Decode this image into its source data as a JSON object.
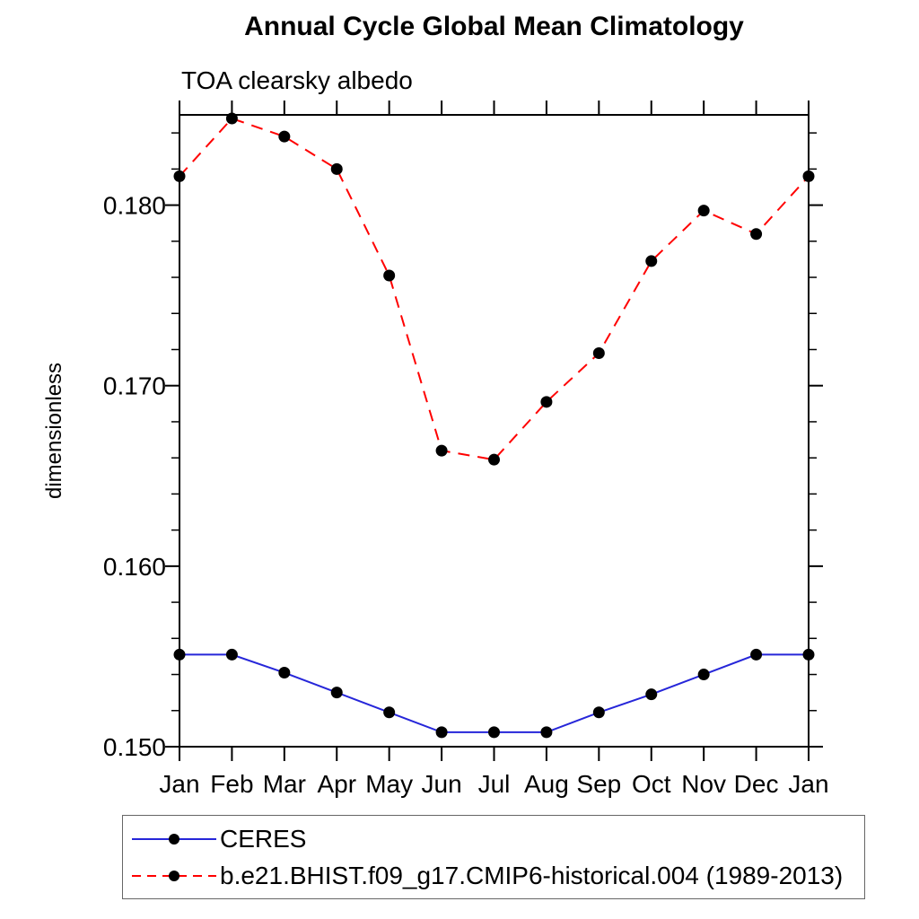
{
  "chart_data": {
    "type": "line",
    "title": "Annual Cycle Global Mean Climatology",
    "subtitle": "TOA clearsky albedo",
    "ylabel": "dimensionless",
    "xlabel": "",
    "categories": [
      "Jan",
      "Feb",
      "Mar",
      "Apr",
      "May",
      "Jun",
      "Jul",
      "Aug",
      "Sep",
      "Oct",
      "Nov",
      "Dec",
      "Jan"
    ],
    "ylim": [
      0.15,
      0.185
    ],
    "y_major_ticks": [
      0.15,
      0.16,
      0.17,
      0.18
    ],
    "y_minor_step": 0.002,
    "grid": "off",
    "legend_position": "bottom-left",
    "series": [
      {
        "name": "CERES",
        "color": "#2626d9",
        "style": "solid",
        "marker": "circle",
        "marker_color": "#000000",
        "values": [
          0.1551,
          0.1551,
          0.1541,
          0.153,
          0.1519,
          0.1508,
          0.1508,
          0.1508,
          0.1519,
          0.1529,
          0.154,
          0.1551,
          0.1551
        ]
      },
      {
        "name": "b.e21.BHIST.f09_g17.CMIP6-historical.004 (1989-2013)",
        "color": "#ff0000",
        "style": "dashed",
        "marker": "circle",
        "marker_color": "#000000",
        "values": [
          0.1816,
          0.1848,
          0.1838,
          0.182,
          0.1761,
          0.1664,
          0.1659,
          0.1691,
          0.1718,
          0.1769,
          0.1797,
          0.1784,
          0.1816
        ]
      }
    ]
  }
}
